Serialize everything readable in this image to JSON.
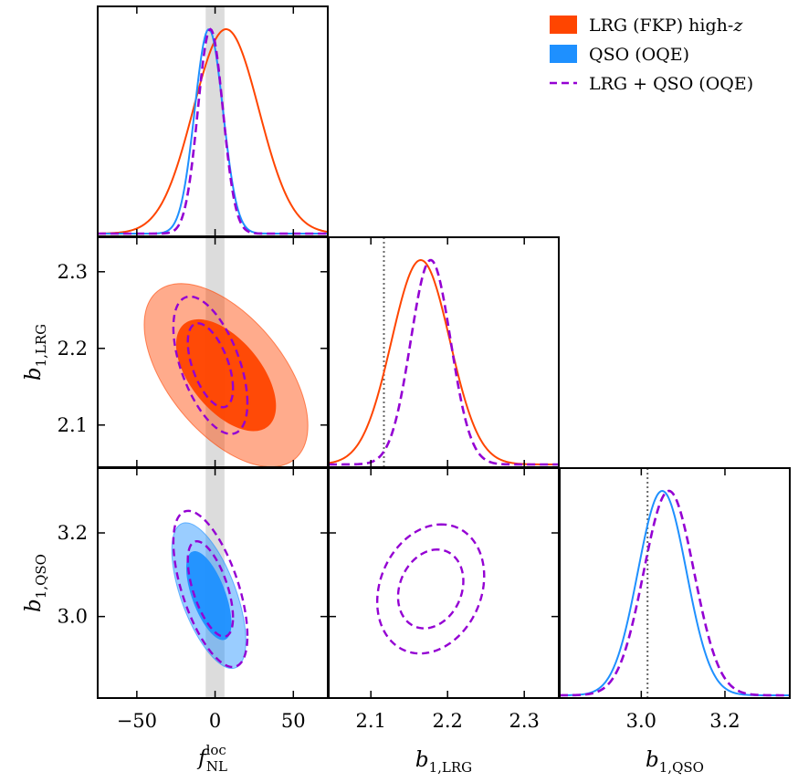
{
  "chart_data": {
    "type": "corner",
    "parameters": [
      {
        "symbol": "f",
        "subscript": "NL",
        "superscript": "loc",
        "range": [
          -75,
          72
        ],
        "ticks": [
          -50,
          0,
          50
        ],
        "tick_labels": [
          "−50",
          "0",
          "50"
        ]
      },
      {
        "symbol": "b",
        "subscript": "1,LRG",
        "range": [
          2.045,
          2.345
        ],
        "ticks": [
          2.1,
          2.2,
          2.3
        ],
        "tick_labels": [
          "2.1",
          "2.2",
          "2.3"
        ]
      },
      {
        "symbol": "b",
        "subscript": "1,QSO",
        "range": [
          2.805,
          3.355
        ],
        "ticks": [
          3.0,
          3.2
        ],
        "tick_labels": [
          "3.0",
          "3.2"
        ]
      }
    ],
    "fiducial_band": {
      "parameter": 0,
      "range": [
        -6,
        6
      ],
      "color": "#dcdcdc"
    },
    "fiducial_lines": [
      {
        "parameter": 1,
        "value": 2.117
      },
      {
        "parameter": 2,
        "value": 3.015
      }
    ],
    "legend": {
      "placement": "top-right",
      "entries": [
        {
          "label": "LRG (FKP) high-",
          "label_math": "z",
          "style": "filled",
          "color": "#ff4500"
        },
        {
          "label": "QSO (OQE)",
          "style": "filled",
          "color": "#1e90ff"
        },
        {
          "label": "LRG + QSO (OQE)",
          "style": "dashed",
          "color": "#9400d3"
        }
      ]
    },
    "series": [
      {
        "name": "LRG (FKP) high-z",
        "color": "#ff4500",
        "style": "filled",
        "mean": [
          7,
          2.165,
          null
        ],
        "marginal_sigma": [
          21,
          0.038,
          null
        ],
        "fnl_lrg_2d": {
          "sigma_fnl": 21,
          "sigma_b": 0.048,
          "rho": -0.55,
          "levels": [
            [
              0.32,
              1.0
            ],
            [
              0.08,
              0.35
            ]
          ]
        }
      },
      {
        "name": "QSO (OQE)",
        "color": "#1e90ff",
        "style": "filled",
        "mean": [
          -4,
          null,
          3.05
        ],
        "marginal_sigma": [
          9,
          null,
          0.058
        ],
        "fnl_qso_2d": {
          "sigma_fnl": 9.5,
          "sigma_b": 0.07,
          "rho": -0.62,
          "levels": [
            [
              0.32,
              1.0
            ],
            [
              0.08,
              0.35
            ]
          ]
        }
      },
      {
        "name": "LRG + QSO (OQE)",
        "color": "#9400d3",
        "style": "dashed",
        "mean": [
          -3,
          2.178,
          3.066
        ],
        "marginal_sigma": [
          8,
          0.026,
          0.06
        ],
        "fnl_lrg_2d": {
          "sigma_fnl": 9.5,
          "sigma_b": 0.036,
          "rho": -0.55
        },
        "fnl_qso_2d": {
          "sigma_fnl": 9.5,
          "sigma_b": 0.075,
          "rho": -0.6
        },
        "lrg_qso_2d": {
          "sigma_lrg": 0.028,
          "sigma_qso": 0.062,
          "rho": 0.2
        }
      }
    ]
  }
}
